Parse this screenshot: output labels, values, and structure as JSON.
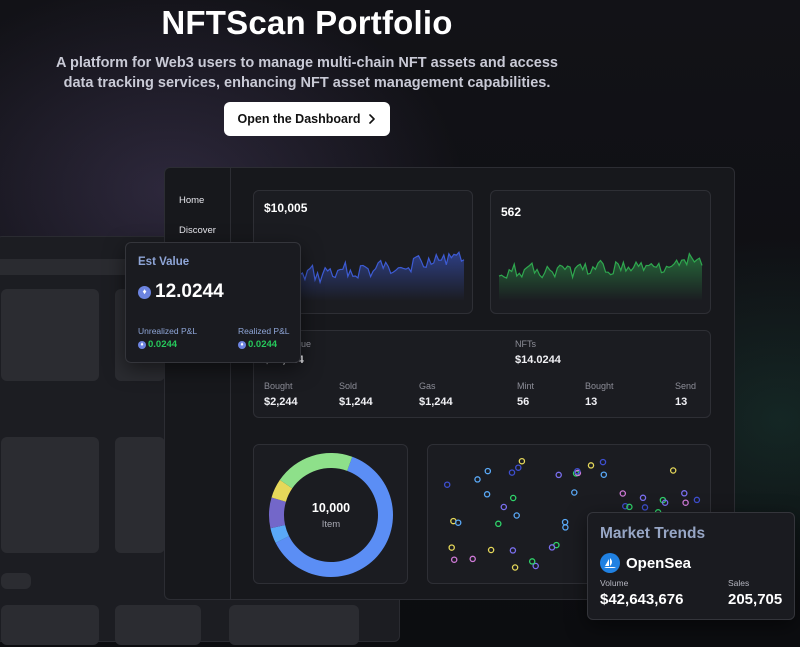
{
  "hero": {
    "title": "NFTScan Portfolio",
    "subtitle_line1": "A platform for Web3 users to manage multi-chain NFT assets and access",
    "subtitle_line2": "data tracking services, enhancing NFT asset management capabilities.",
    "cta_label": "Open the Dashboard",
    "cta_icon": "chevron-right-icon"
  },
  "sidebar": {
    "items": [
      {
        "label": "Home"
      },
      {
        "label": "Discover"
      }
    ]
  },
  "sparklines": {
    "left": {
      "value": "$10,005",
      "color": "#3d5bd4"
    },
    "right": {
      "value": "562",
      "color": "#2fa84f"
    }
  },
  "stats": {
    "value_label_partial": "alue",
    "value_partial": "$14,244",
    "nfts_label": "NFTs",
    "nfts_value": "$14.0244",
    "row": [
      {
        "label": "Bought",
        "value": "$2,244"
      },
      {
        "label": "Sold",
        "value": "$1,244"
      },
      {
        "label": "Gas",
        "value": "$1,244"
      },
      {
        "label": "Mint",
        "value": "56"
      },
      {
        "label": "Bought",
        "value": "13"
      },
      {
        "label": "Send",
        "value": "13"
      }
    ]
  },
  "donut": {
    "center_value": "10,000",
    "center_label": "Item",
    "segments": [
      {
        "fraction": 0.62,
        "color": "#5b8ef5"
      },
      {
        "fraction": 0.04,
        "color": "#5aa9f7"
      },
      {
        "fraction": 0.08,
        "color": "#7367c9"
      },
      {
        "fraction": 0.05,
        "color": "#e6d85a"
      },
      {
        "fraction": 0.21,
        "color": "#8ee08a"
      }
    ]
  },
  "est_value": {
    "title": "Est Value",
    "value": "12.0244",
    "unrealized_label": "Unrealized P&L",
    "unrealized_value": "0.0244",
    "realized_label": "Realized P&L",
    "realized_value": "0.0244",
    "currency_icon": "ethereum-icon",
    "positive_color": "#26c85b"
  },
  "market_trends": {
    "title": "Market Trends",
    "marketplace": "OpenSea",
    "marketplace_icon": "opensea-logo-icon",
    "volume_label": "Volume",
    "volume_value": "$42,643,676",
    "sales_label": "Sales",
    "sales_value": "205,705"
  },
  "colors": {
    "accent_green": "#26c85b",
    "cta_bg": "#ffffff",
    "panel_bg": "#17181c"
  }
}
